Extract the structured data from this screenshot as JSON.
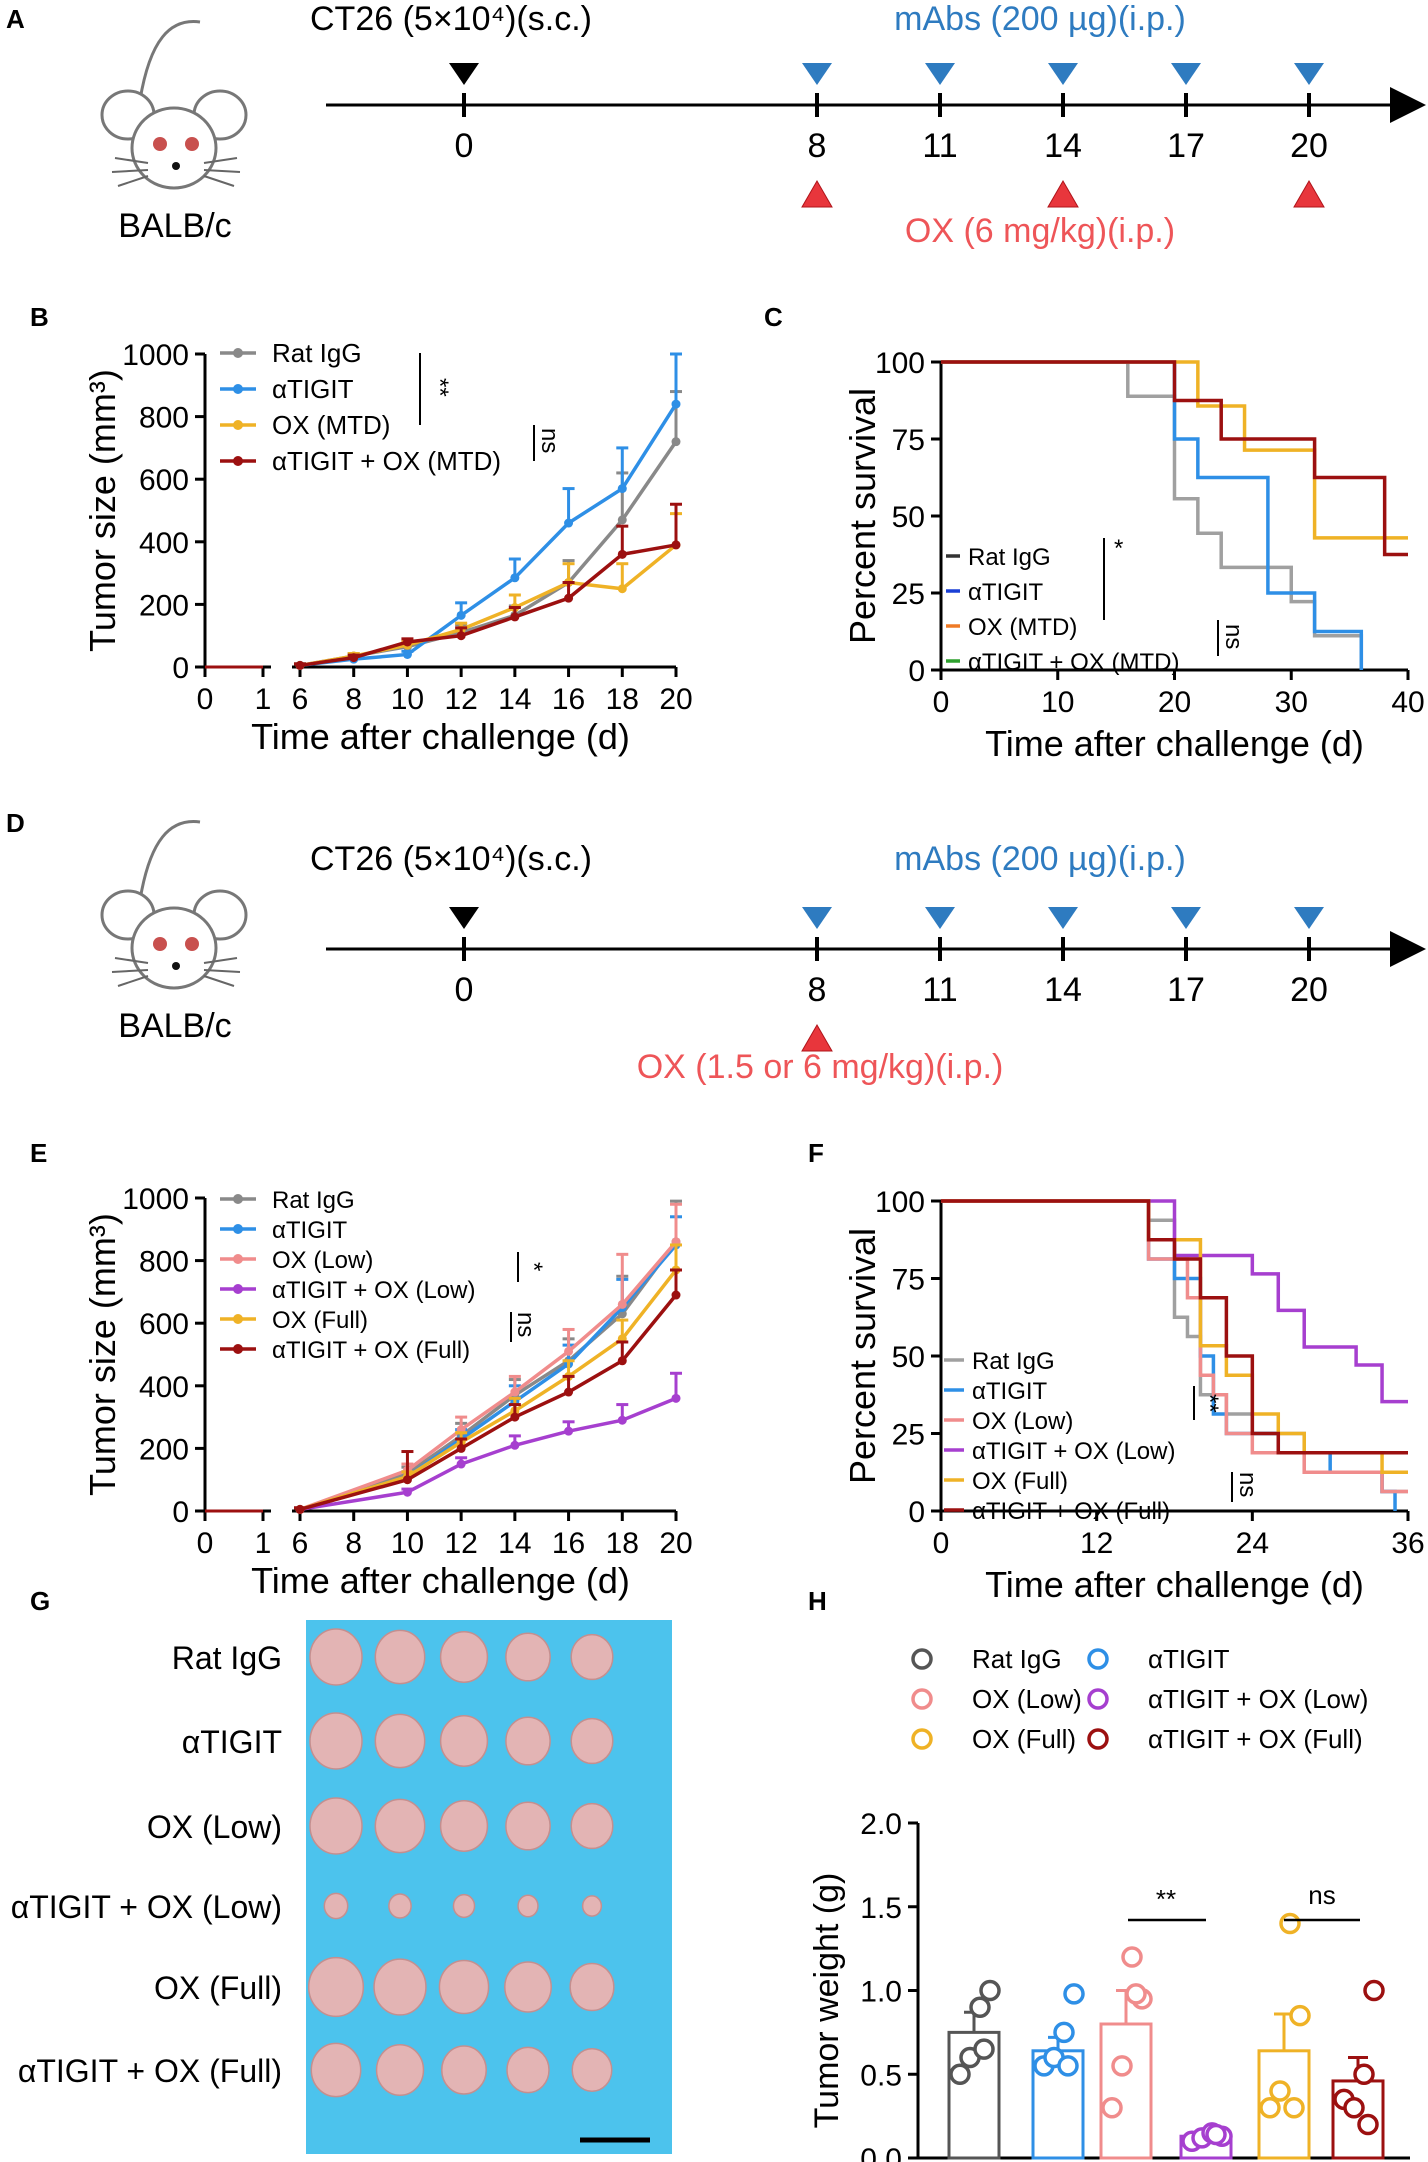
{
  "colors": {
    "rat": "#898989",
    "tigit": "#2e8fe6",
    "ox": "#efb226",
    "combo": "#9c1010",
    "oxlow": "#f08c8c",
    "combolow": "#a63fcf",
    "blue_marker": "#2e7bc0",
    "red_marker": "#e8363c",
    "red_text": "#ee5558",
    "blue_text": "#2e7bc0",
    "photo_bg": "#4cc3ed",
    "tumor": "#e3b4b4"
  },
  "panels": {
    "A": "A",
    "B": "B",
    "C": "C",
    "D": "D",
    "E": "E",
    "F": "F",
    "G": "G",
    "H": "H"
  },
  "panel_a": {
    "strain": "BALB/c",
    "cells": "CT26 (5×10⁴)(s.c.)",
    "mabs": "mAbs (200 µg)(i.p.)",
    "ox": "OX (6 mg/kg)(i.p.)",
    "days": [
      "0",
      "8",
      "11",
      "14",
      "17",
      "20"
    ],
    "mab_days": [
      "8",
      "11",
      "14",
      "17",
      "20"
    ],
    "ox_days": [
      "8",
      "14",
      "20"
    ]
  },
  "panel_d": {
    "strain": "BALB/c",
    "cells": "CT26 (5×10⁴)(s.c.)",
    "mabs": "mAbs (200 µg)(i.p.)",
    "ox": "OX (1.5 or 6 mg/kg)(i.p.)",
    "days": [
      "0",
      "8",
      "11",
      "14",
      "17",
      "20"
    ],
    "mab_days": [
      "8",
      "11",
      "14",
      "17",
      "20"
    ],
    "ox_days": [
      "8"
    ]
  },
  "panel_g": {
    "labels": [
      "Rat IgG",
      "αTIGIT",
      "OX (Low)",
      "αTIGIT + OX (Low)",
      "OX (Full)",
      "αTIGIT + OX (Full)"
    ],
    "tumors_per_row": 5
  },
  "chart_data": [
    {
      "panel": "B",
      "type": "line",
      "xlabel": "Time after challenge (d)",
      "ylabel": "Tumor size (mm³)",
      "ylim": [
        0,
        1000
      ],
      "yticks": [
        "0",
        "200",
        "400",
        "600",
        "800",
        "1000"
      ],
      "xticks": [
        "0",
        "1",
        "6",
        "8",
        "10",
        "12",
        "14",
        "16",
        "18",
        "20"
      ],
      "x": [
        6,
        8,
        10,
        12,
        14,
        16,
        18,
        20
      ],
      "series": [
        {
          "name": "Rat IgG",
          "color": "#898989",
          "values": [
            5,
            35,
            65,
            110,
            165,
            270,
            470,
            720
          ],
          "err": [
            5,
            8,
            12,
            25,
            30,
            70,
            150,
            160
          ]
        },
        {
          "name": "αTIGIT",
          "color": "#2e8fe6",
          "values": [
            5,
            25,
            40,
            165,
            285,
            460,
            570,
            840
          ],
          "err": [
            5,
            8,
            10,
            40,
            60,
            110,
            130,
            160
          ]
        },
        {
          "name": "OX (MTD)",
          "color": "#efb226",
          "values": [
            5,
            35,
            70,
            120,
            190,
            270,
            250,
            390
          ],
          "err": [
            5,
            8,
            12,
            20,
            40,
            60,
            80,
            100
          ]
        },
        {
          "name": "αTIGIT + OX (MTD)",
          "color": "#9c1010",
          "values": [
            5,
            30,
            80,
            100,
            160,
            220,
            360,
            390
          ],
          "err": [
            5,
            8,
            10,
            25,
            30,
            50,
            90,
            130
          ]
        }
      ],
      "sig": [
        {
          "text": "**"
        },
        {
          "text": "ns"
        }
      ]
    },
    {
      "panel": "C",
      "type": "line",
      "xlabel": "Time after challenge (d)",
      "ylabel": "Percent survival",
      "xlim": [
        0,
        40
      ],
      "ylim": [
        0,
        100
      ],
      "xticks": [
        "0",
        "10",
        "20",
        "30",
        "40"
      ],
      "yticks": [
        "0",
        "25",
        "50",
        "75",
        "100"
      ],
      "series": [
        {
          "name": "Rat IgG",
          "color": "#a0a0a0",
          "steps": [
            [
              0,
              100
            ],
            [
              16,
              88.9
            ],
            [
              20,
              55.6
            ],
            [
              22,
              44.4
            ],
            [
              24,
              33.3
            ],
            [
              30,
              22.2
            ],
            [
              32,
              11.1
            ],
            [
              36,
              0
            ]
          ]
        },
        {
          "name": "αTIGIT",
          "color": "#2e8fe6",
          "steps": [
            [
              0,
              100
            ],
            [
              20,
              75
            ],
            [
              22,
              62.5
            ],
            [
              28,
              25
            ],
            [
              30,
              25
            ],
            [
              32,
              12.5
            ],
            [
              36,
              0
            ]
          ]
        },
        {
          "name": "OX (MTD)",
          "color": "#efb226",
          "steps": [
            [
              0,
              100
            ],
            [
              22,
              85.7
            ],
            [
              26,
              71.4
            ],
            [
              32,
              42.9
            ],
            [
              40,
              42.9
            ]
          ]
        },
        {
          "name": "αTIGIT + OX (MTD)",
          "color": "#9c1010",
          "steps": [
            [
              0,
              100
            ],
            [
              20,
              87.5
            ],
            [
              24,
              75
            ],
            [
              32,
              62.5
            ],
            [
              38,
              37.5
            ],
            [
              40,
              37.5
            ]
          ]
        }
      ],
      "legend_colors": [
        "#333333",
        "#1a3fd6",
        "#ef7a26",
        "#2ea02e"
      ],
      "sig": [
        {
          "text": "*"
        },
        {
          "text": "ns"
        }
      ]
    },
    {
      "panel": "E",
      "type": "line",
      "xlabel": "Time after challenge (d)",
      "ylabel": "Tumor size (mm³)",
      "ylim": [
        0,
        1000
      ],
      "yticks": [
        "0",
        "200",
        "400",
        "600",
        "800",
        "1000"
      ],
      "xticks": [
        "0",
        "1",
        "6",
        "8",
        "10",
        "12",
        "14",
        "16",
        "18",
        "20"
      ],
      "x": [
        6,
        10,
        12,
        14,
        16,
        18,
        20
      ],
      "series": [
        {
          "name": "Rat IgG",
          "color": "#898989",
          "values": [
            5,
            120,
            240,
            370,
            480,
            630,
            860
          ],
          "err": [
            5,
            20,
            40,
            50,
            70,
            120,
            130
          ]
        },
        {
          "name": "αTIGIT",
          "color": "#2e8fe6",
          "values": [
            5,
            110,
            230,
            350,
            470,
            650,
            850
          ],
          "err": [
            5,
            15,
            30,
            50,
            60,
            90,
            90
          ]
        },
        {
          "name": "OX (Low)",
          "color": "#f08c8c",
          "values": [
            5,
            130,
            260,
            380,
            510,
            660,
            860
          ],
          "err": [
            5,
            20,
            40,
            50,
            70,
            160,
            120
          ]
        },
        {
          "name": "αTIGIT + OX (Low)",
          "color": "#a63fcf",
          "values": [
            5,
            60,
            150,
            210,
            255,
            290,
            360
          ],
          "err": [
            5,
            10,
            20,
            30,
            30,
            50,
            80
          ]
        },
        {
          "name": "OX (Full)",
          "color": "#efb226",
          "values": [
            5,
            110,
            220,
            320,
            430,
            550,
            770
          ],
          "err": [
            5,
            15,
            30,
            40,
            50,
            60,
            80
          ]
        },
        {
          "name": "αTIGIT + OX (Full)",
          "color": "#9c1010",
          "values": [
            5,
            100,
            200,
            300,
            380,
            480,
            690
          ],
          "err": [
            5,
            90,
            30,
            40,
            50,
            60,
            80
          ]
        }
      ],
      "sig": [
        {
          "text": "*"
        },
        {
          "text": "ns"
        }
      ]
    },
    {
      "panel": "F",
      "type": "line",
      "xlabel": "Time after challenge (d)",
      "ylabel": "Percent survival",
      "xlim": [
        0,
        36
      ],
      "ylim": [
        0,
        100
      ],
      "xticks": [
        "0",
        "12",
        "24",
        "36"
      ],
      "yticks": [
        "0",
        "25",
        "50",
        "75",
        "100"
      ],
      "series": [
        {
          "name": "Rat IgG",
          "color": "#a0a0a0",
          "steps": [
            [
              0,
              100
            ],
            [
              16,
              93.8
            ],
            [
              18,
              62.5
            ],
            [
              19,
              56.3
            ],
            [
              20,
              37.5
            ],
            [
              22,
              31.3
            ],
            [
              24,
              25
            ],
            [
              28,
              12.5
            ],
            [
              34,
              6.3
            ],
            [
              36,
              6.3
            ]
          ]
        },
        {
          "name": "αTIGIT",
          "color": "#2e8fe6",
          "steps": [
            [
              0,
              100
            ],
            [
              16,
              81.3
            ],
            [
              18,
              75
            ],
            [
              20,
              50
            ],
            [
              21,
              31.3
            ],
            [
              22,
              25
            ],
            [
              26,
              18.8
            ],
            [
              30,
              12.5
            ],
            [
              34,
              6.3
            ],
            [
              35,
              0
            ]
          ]
        },
        {
          "name": "OX (Low)",
          "color": "#f08c8c",
          "steps": [
            [
              0,
              100
            ],
            [
              16,
              81.3
            ],
            [
              19,
              68.8
            ],
            [
              20,
              43.8
            ],
            [
              21,
              37.5
            ],
            [
              22,
              25
            ],
            [
              24,
              18.8
            ],
            [
              28,
              12.5
            ],
            [
              34,
              6.3
            ],
            [
              36,
              6.3
            ]
          ]
        },
        {
          "name": "αTIGIT + OX (Low)",
          "color": "#a63fcf",
          "steps": [
            [
              0,
              100
            ],
            [
              18,
              82.4
            ],
            [
              24,
              76.5
            ],
            [
              26,
              64.7
            ],
            [
              28,
              52.9
            ],
            [
              32,
              47.1
            ],
            [
              34,
              35.3
            ],
            [
              36,
              35.3
            ]
          ]
        },
        {
          "name": "OX (Full)",
          "color": "#efb226",
          "steps": [
            [
              0,
              100
            ],
            [
              16,
              87.5
            ],
            [
              20,
              53.3
            ],
            [
              22,
              43.8
            ],
            [
              24,
              31.3
            ],
            [
              26,
              25
            ],
            [
              28,
              18.8
            ],
            [
              34,
              12.5
            ],
            [
              36,
              12.5
            ]
          ]
        },
        {
          "name": "αTIGIT + OX (Full)",
          "color": "#9c1010",
          "steps": [
            [
              0,
              100
            ],
            [
              16,
              87.5
            ],
            [
              18,
              81.3
            ],
            [
              20,
              68.8
            ],
            [
              22,
              50
            ],
            [
              24,
              25
            ],
            [
              26,
              18.8
            ],
            [
              30,
              18.8
            ],
            [
              36,
              18.8
            ]
          ]
        }
      ],
      "sig": [
        {
          "text": "**"
        },
        {
          "text": "ns"
        }
      ]
    },
    {
      "panel": "H",
      "type": "bar",
      "ylabel": "Tumor weight (g)",
      "ylim": [
        0,
        2.0
      ],
      "yticks": [
        "0.0",
        "0.5",
        "1.0",
        "1.5",
        "2.0"
      ],
      "categories": [
        "Rat IgG",
        "αTIGIT",
        "OX (Low)",
        "αTIGIT + OX (Low)",
        "OX (Full)",
        "αTIGIT + OX (Full)"
      ],
      "colors": [
        "#555555",
        "#2e8fe6",
        "#f08c8c",
        "#a63fcf",
        "#efb226",
        "#9c1010"
      ],
      "values": [
        0.75,
        0.64,
        0.8,
        0.13,
        0.64,
        0.46
      ],
      "err": [
        0.12,
        0.08,
        0.2,
        0.02,
        0.22,
        0.14
      ],
      "points": [
        [
          0.5,
          0.6,
          0.9,
          1.0,
          0.65
        ],
        [
          0.55,
          0.6,
          0.75,
          0.98,
          0.55
        ],
        [
          0.3,
          0.55,
          1.2,
          0.95,
          0.98
        ],
        [
          0.1,
          0.12,
          0.15,
          0.13,
          0.14
        ],
        [
          0.3,
          0.4,
          1.4,
          0.85,
          0.3
        ],
        [
          0.35,
          0.3,
          0.5,
          1.0,
          0.2
        ]
      ],
      "sig": [
        {
          "text": "**"
        },
        {
          "text": "ns"
        }
      ]
    }
  ]
}
